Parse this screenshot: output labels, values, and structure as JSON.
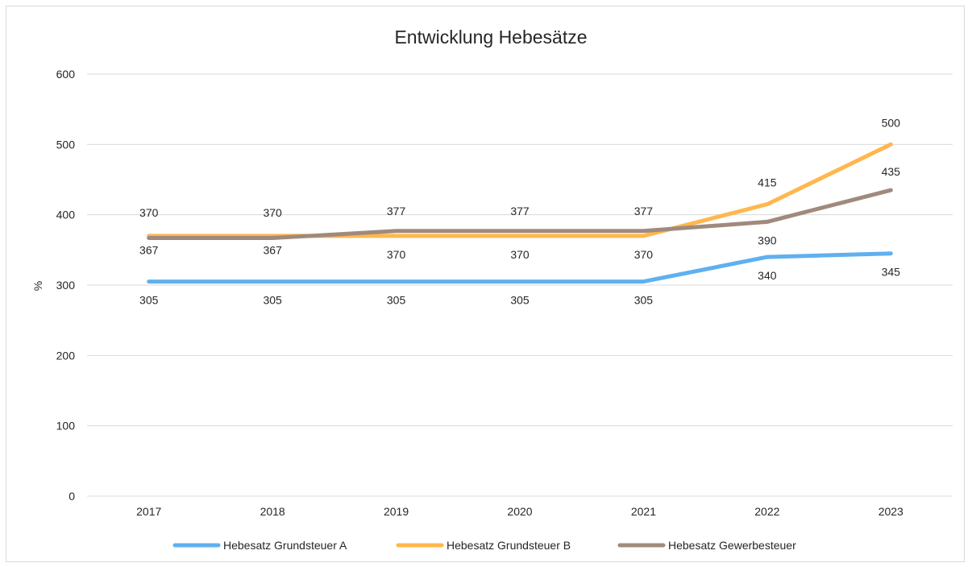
{
  "chart_data": {
    "type": "line",
    "title": "Entwicklung Hebesätze",
    "ylabel": "%",
    "xlabel": "",
    "ylim": [
      0,
      600
    ],
    "yticks": [
      0,
      100,
      200,
      300,
      400,
      500,
      600
    ],
    "categories": [
      "2017",
      "2018",
      "2019",
      "2020",
      "2021",
      "2022",
      "2023"
    ],
    "grid": true,
    "legend_position": "bottom",
    "series": [
      {
        "name": "Hebesatz Grundsteuer A",
        "color": "#5fb0ef",
        "values": [
          305,
          305,
          305,
          305,
          305,
          340,
          345
        ],
        "label_position": "below"
      },
      {
        "name": "Hebesatz Grundsteuer B",
        "color": "#ffb74d",
        "values": [
          370,
          370,
          370,
          370,
          370,
          415,
          500
        ],
        "label_position": "mixed"
      },
      {
        "name": "Hebesatz Gewerbesteuer",
        "color": "#a08a7d",
        "values": [
          367,
          367,
          377,
          377,
          377,
          390,
          435
        ],
        "label_position": "mixed"
      }
    ]
  }
}
